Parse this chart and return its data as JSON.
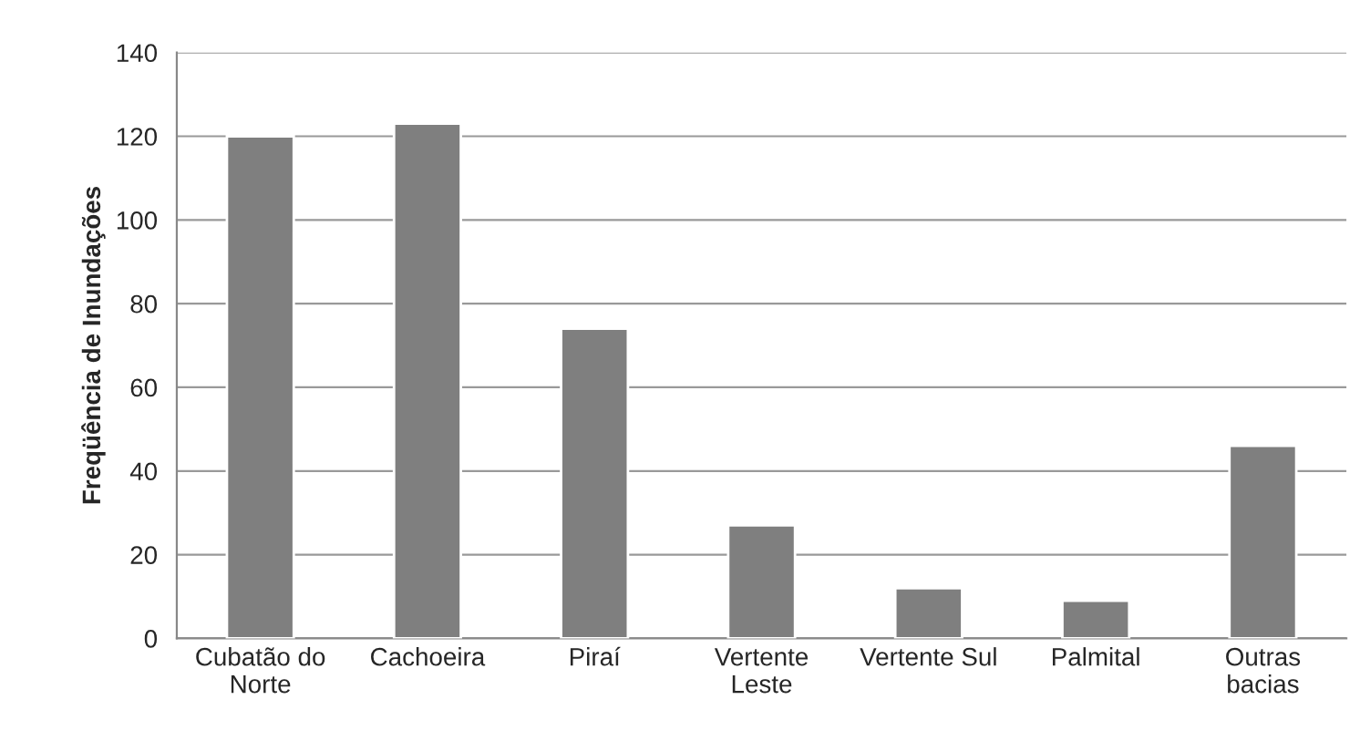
{
  "chart_data": {
    "type": "bar",
    "ylabel": "Freqüência de Inundações",
    "categories": [
      "Cubatão do\nNorte",
      "Cachoeira",
      "Piraí",
      "Vertente\nLeste",
      "Vertente Sul",
      "Palmital",
      "Outras\nbacias"
    ],
    "values": [
      120,
      123,
      74,
      27,
      12,
      9,
      46
    ],
    "color": "#7f7f7f",
    "ylim": [
      0,
      140
    ],
    "yticks": [
      0,
      20,
      40,
      60,
      80,
      100,
      120,
      140
    ],
    "grid": "y"
  }
}
